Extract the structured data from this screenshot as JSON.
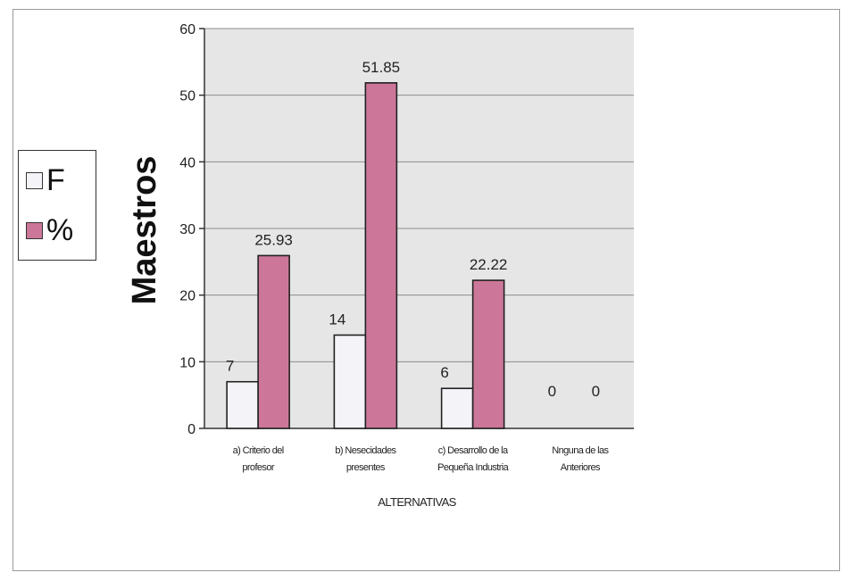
{
  "chart_data": {
    "type": "bar",
    "ylabel": "Maestros",
    "xlabel": "ALTERNATIVAS",
    "ylim": [
      0,
      60
    ],
    "yticks": [
      0,
      10,
      20,
      30,
      40,
      50,
      60
    ],
    "grid": true,
    "legend_position": "left",
    "categories": [
      [
        "a) Criterio del",
        "profesor"
      ],
      [
        "b) Nesecidades",
        "presentes"
      ],
      [
        "c) Desarrollo de la",
        "Pequeña Industria"
      ],
      [
        "Nnguna de las",
        "Anteriores"
      ]
    ],
    "series": [
      {
        "name": "F",
        "values": [
          7,
          14,
          6,
          0
        ],
        "labels": [
          "7",
          "14",
          "6",
          "0"
        ],
        "color": "#f4f4f8"
      },
      {
        "name": "%",
        "values": [
          25.93,
          51.85,
          22.22,
          0
        ],
        "labels": [
          "25.93",
          "51.85",
          "22.22",
          "0"
        ],
        "color": "#cc7799"
      }
    ],
    "plot_background": "#e6e6e6"
  }
}
